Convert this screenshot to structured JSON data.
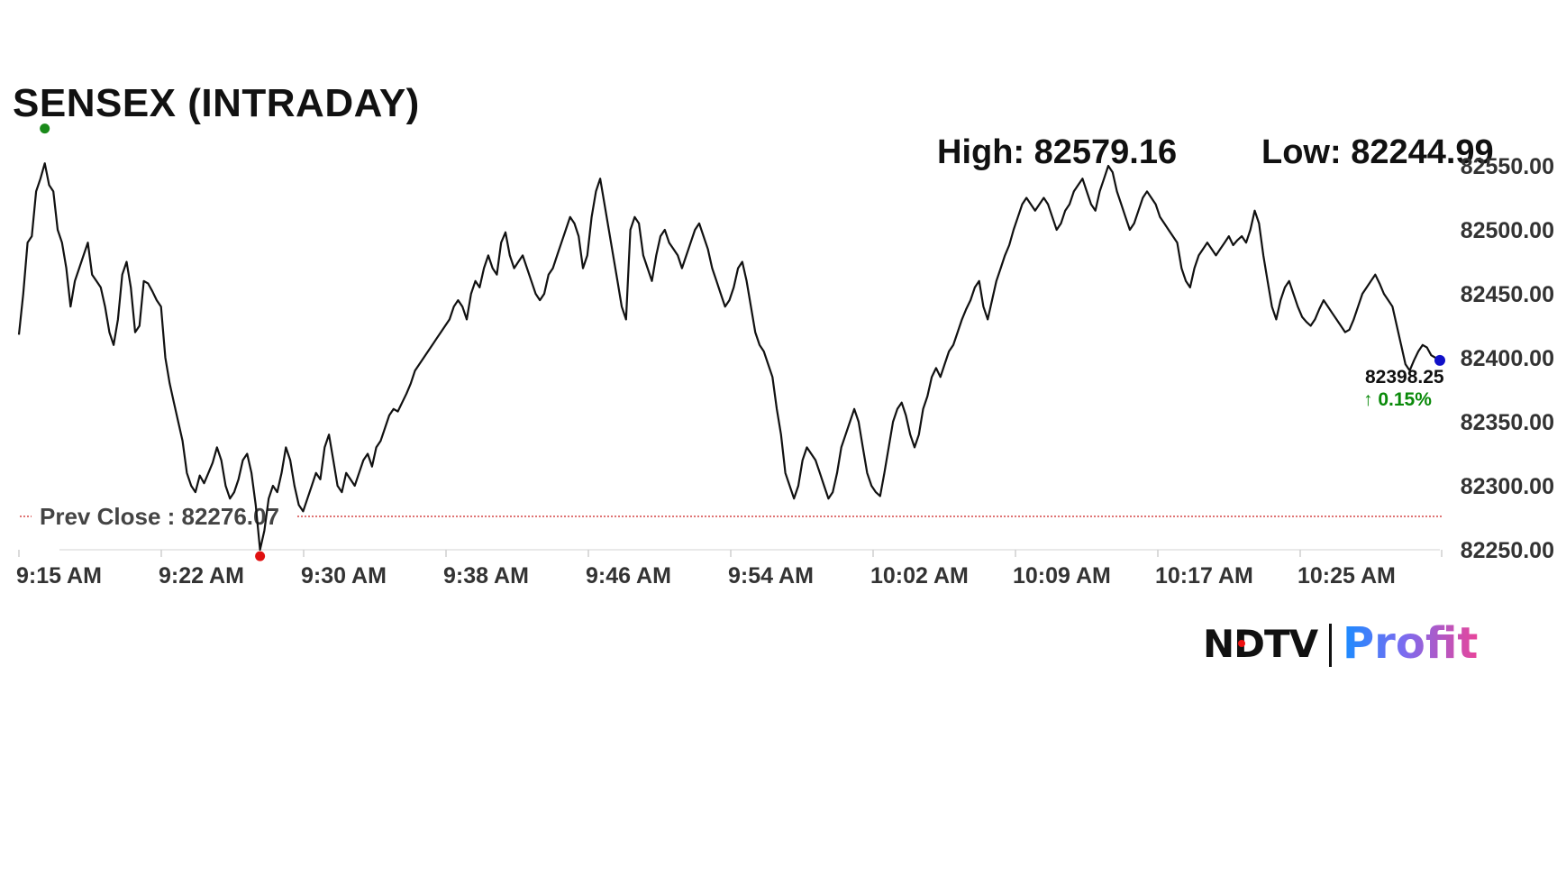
{
  "header": {
    "title": "SENSEX (INTRADAY)",
    "high_text": "High: 82579.16",
    "low_text": "Low: 82244.99"
  },
  "colors": {
    "line": "#111111",
    "high_marker": "#1a8a1a",
    "low_marker": "#e01010",
    "last_marker": "#1010c8",
    "prev_close_line": "#cc2222",
    "positive": "#0a8a0a"
  },
  "chart_data": {
    "type": "line",
    "title": "SENSEX (INTRADAY)",
    "xlabel": "",
    "ylabel": "",
    "ylim": [
      82244.99,
      82579.16
    ],
    "yticks": [
      "82550.00",
      "82500.00",
      "82450.00",
      "82400.00",
      "82350.00",
      "82300.00",
      "82250.00"
    ],
    "ytick_values": [
      82550,
      82500,
      82450,
      82400,
      82350,
      82300,
      82250
    ],
    "xticks": [
      "9:15 AM",
      "9:22 AM",
      "9:30 AM",
      "9:38 AM",
      "9:46 AM",
      "9:54 AM",
      "10:02 AM",
      "10:09 AM",
      "10:17 AM",
      "10:25 AM"
    ],
    "grid": false,
    "legend": "none",
    "prev_close": 82276.07,
    "prev_close_label": "Prev Close : 82276.07",
    "last_value_label": "82398.25",
    "change_label": "↑ 0.15%",
    "series": [
      {
        "values": [
          82418,
          82450,
          82490,
          82495,
          82530,
          82540,
          82552,
          82535,
          82530,
          82500,
          82490,
          82470,
          82440,
          82460,
          82470,
          82480,
          82490,
          82465,
          82460,
          82455,
          82440,
          82420,
          82410,
          82430,
          82465,
          82475,
          82455,
          82420,
          82425,
          82460,
          82458,
          82452,
          82445,
          82440,
          82400,
          82380,
          82365,
          82350,
          82335,
          82310,
          82300,
          82295,
          82308,
          82302,
          82310,
          82318,
          82330,
          82320,
          82300,
          82290,
          82295,
          82305,
          82320,
          82325,
          82310,
          82285,
          82250,
          82265,
          82290,
          82300,
          82295,
          82310,
          82330,
          82320,
          82300,
          82285,
          82280,
          82290,
          82300,
          82310,
          82305,
          82330,
          82340,
          82320,
          82300,
          82295,
          82310,
          82305,
          82300,
          82310,
          82320,
          82325,
          82315,
          82330,
          82335,
          82345,
          82355,
          82360,
          82358,
          82365,
          82372,
          82380,
          82390,
          82395,
          82400,
          82405,
          82410,
          82415,
          82420,
          82425,
          82430,
          82440,
          82445,
          82440,
          82430,
          82450,
          82460,
          82455,
          82470,
          82480,
          82470,
          82465,
          82490,
          82498,
          82480,
          82470,
          82475,
          82480,
          82470,
          82460,
          82450,
          82445,
          82450,
          82465,
          82470,
          82480,
          82490,
          82500,
          82510,
          82505,
          82495,
          82470,
          82480,
          82510,
          82530,
          82540,
          82520,
          82500,
          82480,
          82460,
          82440,
          82430,
          82500,
          82510,
          82505,
          82480,
          82470,
          82460,
          82480,
          82495,
          82500,
          82490,
          82485,
          82480,
          82470,
          82480,
          82490,
          82500,
          82505,
          82495,
          82485,
          82470,
          82460,
          82450,
          82440,
          82445,
          82455,
          82470,
          82475,
          82460,
          82440,
          82420,
          82410,
          82405,
          82395,
          82385,
          82360,
          82340,
          82310,
          82300,
          82290,
          82300,
          82320,
          82330,
          82325,
          82320,
          82310,
          82300,
          82290,
          82295,
          82310,
          82330,
          82340,
          82350,
          82360,
          82350,
          82330,
          82310,
          82300,
          82295,
          82292,
          82310,
          82330,
          82350,
          82360,
          82365,
          82355,
          82340,
          82330,
          82340,
          82360,
          82370,
          82385,
          82392,
          82385,
          82395,
          82405,
          82410,
          82420,
          82430,
          82438,
          82445,
          82455,
          82460,
          82440,
          82430,
          82445,
          82460,
          82470,
          82480,
          82488,
          82500,
          82510,
          82520,
          82525,
          82520,
          82515,
          82520,
          82525,
          82520,
          82510,
          82500,
          82505,
          82515,
          82520,
          82530,
          82535,
          82540,
          82530,
          82520,
          82515,
          82530,
          82540,
          82550,
          82545,
          82530,
          82520,
          82510,
          82500,
          82505,
          82515,
          82525,
          82530,
          82525,
          82520,
          82510,
          82505,
          82500,
          82495,
          82490,
          82470,
          82460,
          82455,
          82470,
          82480,
          82485,
          82490,
          82485,
          82480,
          82485,
          82490,
          82495,
          82488,
          82492,
          82495,
          82490,
          82500,
          82515,
          82505,
          82480,
          82460,
          82440,
          82430,
          82445,
          82455,
          82460,
          82450,
          82440,
          82432,
          82428,
          82425,
          82430,
          82438,
          82445,
          82440,
          82435,
          82430,
          82425,
          82420,
          82422,
          82430,
          82440,
          82450,
          82455,
          82460,
          82465,
          82458,
          82450,
          82445,
          82440,
          82425,
          82410,
          82395,
          82390,
          82398,
          82405,
          82410,
          82408,
          82402,
          82400,
          82398
        ]
      }
    ]
  },
  "branding": {
    "logo_ndtv": "NDTV",
    "logo_profit": "Profit"
  }
}
